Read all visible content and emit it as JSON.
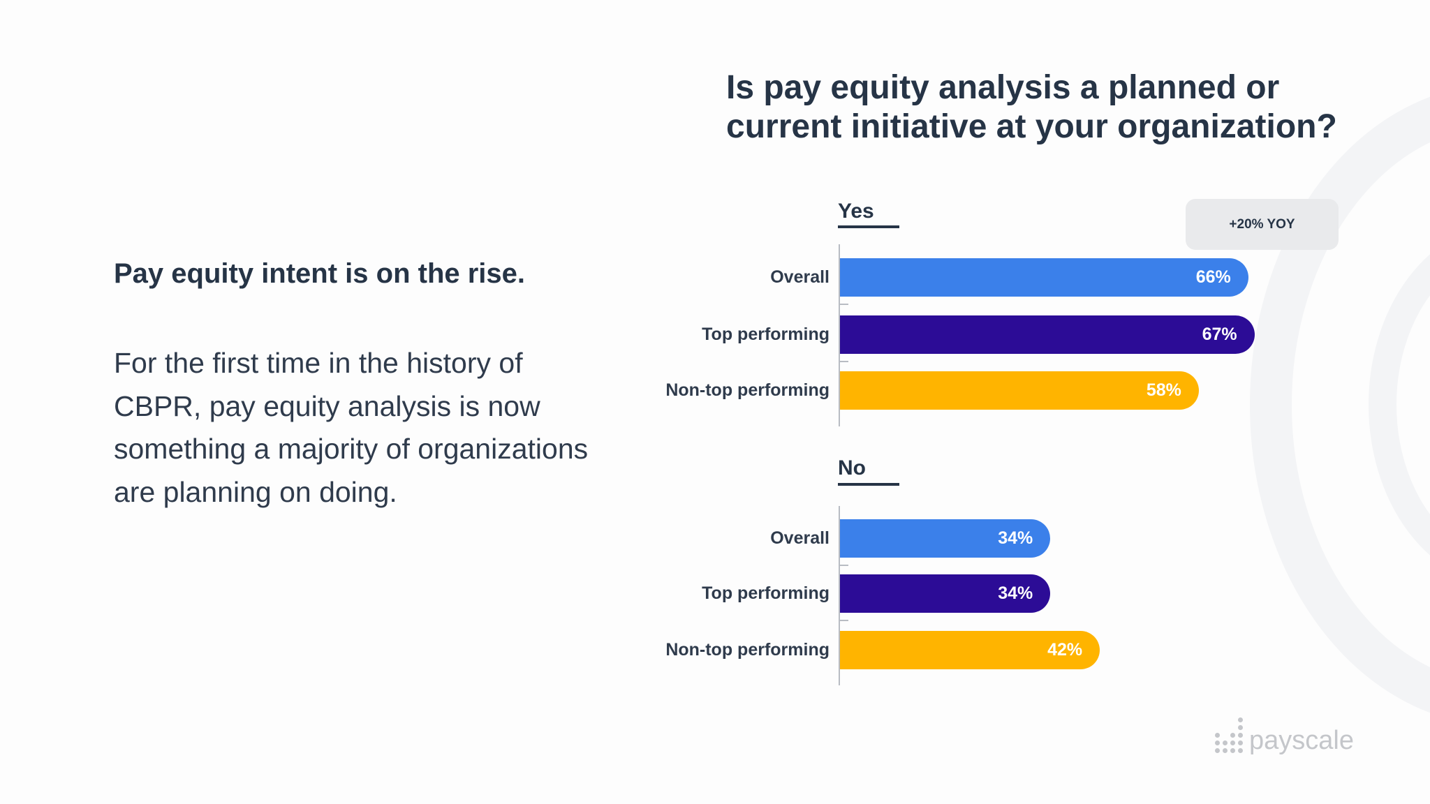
{
  "chart_data": {
    "type": "bar",
    "orientation": "horizontal",
    "title": "Is pay equity analysis a planned or current initiative at your organization?",
    "groups": [
      {
        "label": "Yes",
        "categories": [
          "Overall",
          "Top performing",
          "Non-top performing"
        ],
        "values": [
          66,
          67,
          58
        ],
        "labels": [
          "66%",
          "67%",
          "58%"
        ]
      },
      {
        "label": "No",
        "categories": [
          "Overall",
          "Top performing",
          "Non-top performing"
        ],
        "values": [
          34,
          34,
          42
        ],
        "labels": [
          "34%",
          "34%",
          "42%"
        ]
      }
    ],
    "colors": [
      "#3b80ea",
      "#2c0c96",
      "#ffb400"
    ],
    "annotation": "+20% YOY",
    "unit": "%",
    "xlim": [
      0,
      100
    ],
    "grid": false
  },
  "text": {
    "lead": "Pay equity intent is on the rise.",
    "body": "For the first time in the history of CBPR, pay equity analysis is now something a majority of organizations are planning on doing."
  },
  "logo": {
    "text": "payscale"
  }
}
